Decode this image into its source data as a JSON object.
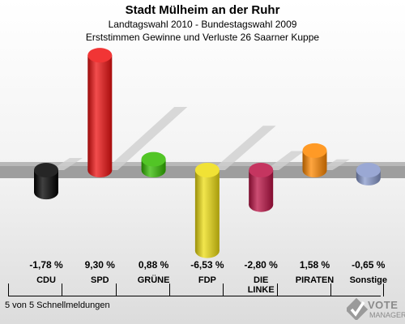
{
  "header": {
    "title": "Stadt Mülheim an der Ruhr",
    "subtitle": "Landtagswahl 2010 - Bundestagswahl 2009",
    "subtitle2": "Erststimmen Gewinne und Verluste 26 Saarner Kuppe"
  },
  "chart_data": {
    "type": "bar",
    "categories": [
      "CDU",
      "SPD",
      "GRÜNE",
      "FDP",
      "DIE LINKE",
      "PIRATEN",
      "Sonstige"
    ],
    "values": [
      -1.78,
      9.3,
      0.88,
      -6.53,
      -2.8,
      1.58,
      -0.65
    ],
    "value_labels": [
      "-1,78 %",
      "9,30 %",
      "0,88 %",
      "-6,53 %",
      "-2,80 %",
      "1,58 %",
      "-0,65 %"
    ],
    "colors": [
      "#000000",
      "#ee1111",
      "#33bb00",
      "#eedd11",
      "#bb1144",
      "#ff8800",
      "#8899cc"
    ],
    "ylim": [
      -7,
      10
    ]
  },
  "footer": {
    "text": "5 von 5 Schnellmeldungen"
  },
  "logo": {
    "line1": "VOTE",
    "line2": "MANAGER"
  }
}
